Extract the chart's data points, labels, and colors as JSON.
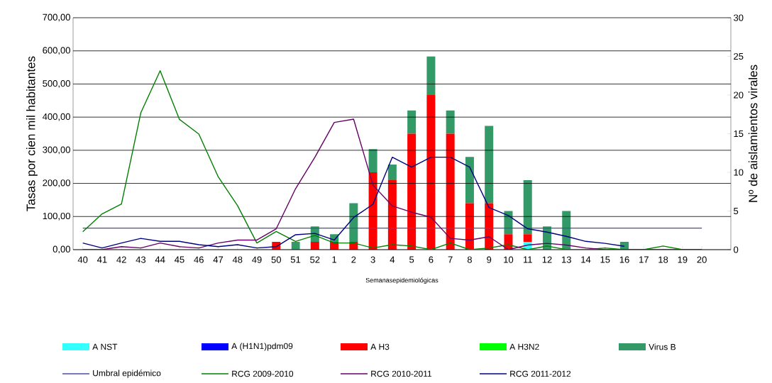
{
  "chart_data": {
    "type": "bar",
    "stacked": true,
    "xlabel": "Semanasepidemiológicas",
    "ylabel": "Tasas por cien mil habitantes",
    "y2label": "Nº de aislamientos virales",
    "categories": [
      "40",
      "41",
      "42",
      "43",
      "44",
      "45",
      "46",
      "47",
      "48",
      "49",
      "50",
      "51",
      "52",
      "1",
      "2",
      "3",
      "4",
      "5",
      "6",
      "7",
      "8",
      "9",
      "10",
      "11",
      "12",
      "13",
      "14",
      "15",
      "16",
      "17",
      "18",
      "19",
      "20"
    ],
    "ylim": [
      0,
      700
    ],
    "yticks": [
      {
        "value": 0,
        "label": "0,00"
      },
      {
        "value": 100,
        "label": "100,00"
      },
      {
        "value": 200,
        "label": "200,00"
      },
      {
        "value": 300,
        "label": "300,00"
      },
      {
        "value": 400,
        "label": "400,00"
      },
      {
        "value": 500,
        "label": "500,00"
      },
      {
        "value": 600,
        "label": "600,00"
      },
      {
        "value": 700,
        "label": "700,00"
      }
    ],
    "y2lim": [
      0,
      30
    ],
    "y2ticks": [
      0,
      5,
      10,
      15,
      20,
      25,
      30
    ],
    "grid": "y",
    "legend": "bottom",
    "marker": "none",
    "series": [
      {
        "name": "A  NST",
        "axis": "y2",
        "color": "#33ffff",
        "values": [
          0,
          0,
          0,
          0,
          0,
          0,
          0,
          0,
          0,
          0,
          0,
          0,
          0,
          0,
          0,
          0,
          0,
          0,
          0,
          0,
          0,
          0,
          0,
          1,
          0,
          0,
          0,
          0,
          0,
          0,
          0,
          0,
          0
        ]
      },
      {
        "name": "A (H1N1)pdm09",
        "axis": "y2",
        "color": "#0000ff",
        "values": [
          0,
          0,
          0,
          0,
          0,
          0,
          0,
          0,
          0,
          0,
          0,
          0,
          0,
          0,
          0,
          0,
          0,
          0,
          0,
          0,
          0,
          0,
          0,
          0,
          0,
          0,
          0,
          0,
          0,
          0,
          0,
          0,
          0
        ]
      },
      {
        "name": "A  H3",
        "axis": "y2",
        "color": "#ff0000",
        "values": [
          0,
          0,
          0,
          0,
          0,
          0,
          0,
          0,
          0,
          0,
          1,
          0,
          1,
          1,
          1,
          10,
          9,
          15,
          20,
          15,
          6,
          6,
          2,
          1,
          0,
          0,
          0,
          0,
          0,
          0,
          0,
          0,
          0
        ]
      },
      {
        "name": "A H3N2",
        "axis": "y2",
        "color": "#00ff00",
        "values": [
          0,
          0,
          0,
          0,
          0,
          0,
          0,
          0,
          0,
          0,
          0,
          0,
          0,
          0,
          0,
          0,
          0,
          0,
          0,
          0,
          0,
          0,
          0,
          0,
          0,
          0,
          0,
          0,
          0,
          0,
          0,
          0,
          0
        ]
      },
      {
        "name": "Virus B",
        "axis": "y2",
        "color": "#339966",
        "values": [
          0,
          0,
          0,
          0,
          0,
          0,
          0,
          0,
          0,
          0,
          0,
          1,
          2,
          1,
          5,
          3,
          2,
          3,
          5,
          3,
          6,
          10,
          3,
          7,
          3,
          5,
          0,
          0,
          1,
          0,
          0,
          0,
          0
        ]
      },
      {
        "name": "Umbral epidémico",
        "type": "line",
        "axis": "y",
        "color": "#4b4ba6",
        "values": [
          65,
          65,
          65,
          65,
          65,
          65,
          65,
          65,
          65,
          65,
          65,
          65,
          65,
          65,
          65,
          65,
          65,
          65,
          65,
          65,
          65,
          65,
          65,
          65,
          65,
          65,
          65,
          65,
          65,
          65,
          65,
          65,
          65
        ]
      },
      {
        "name": "RCG 2009-2010",
        "type": "line",
        "axis": "y",
        "color": "#008000",
        "values": [
          54,
          108,
          138,
          413,
          540,
          393,
          349,
          220,
          133,
          20,
          55,
          25,
          43,
          20,
          20,
          5,
          15,
          11,
          0,
          20,
          0,
          5,
          15,
          0,
          11,
          0,
          0,
          5,
          0,
          0,
          11,
          0,
          0
        ]
      },
      {
        "name": "RCG 2010-2011",
        "type": "line",
        "axis": "y",
        "color": "#660066",
        "values": [
          0,
          0,
          9,
          5,
          20,
          9,
          5,
          20,
          29,
          29,
          63,
          184,
          279,
          384,
          394,
          195,
          132,
          113,
          98,
          34,
          29,
          39,
          0,
          14,
          19,
          14,
          5,
          0,
          0,
          0,
          0,
          0,
          0
        ]
      },
      {
        "name": "RCG 2011-2012",
        "type": "line",
        "axis": "y",
        "color": "#000080",
        "values": [
          20,
          5,
          20,
          34,
          25,
          25,
          15,
          9,
          15,
          5,
          9,
          45,
          49,
          29,
          97,
          137,
          279,
          249,
          279,
          279,
          249,
          127,
          103,
          63,
          53,
          40,
          25,
          19,
          10,
          null,
          null,
          null,
          null
        ]
      }
    ]
  }
}
